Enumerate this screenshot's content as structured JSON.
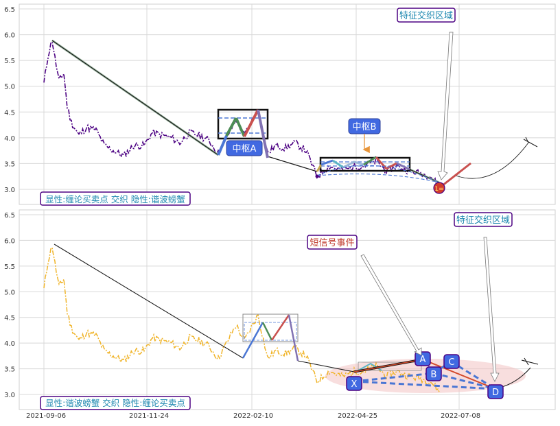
{
  "chart_data": [
    {
      "type": "line",
      "panel": "top",
      "ylim": [
        2.8,
        6.6
      ],
      "yticks": [
        3.0,
        3.5,
        4.0,
        4.5,
        5.0,
        5.5,
        6.0,
        6.5
      ],
      "grid": true,
      "info_box": "显性:缠论买卖点 交织 隐性:谐波螃蟹",
      "annotations": {
        "zhongshu_a": "中枢A",
        "zhongshu_b": "中枢B",
        "feature_zone": "特征交织区域",
        "signal_marker": "1="
      },
      "colors": {
        "price": "#4b0082",
        "box_label_bg": "#4169e1",
        "feature_border": "#4b0082"
      }
    },
    {
      "type": "line",
      "panel": "bottom",
      "ylim": [
        2.8,
        6.6
      ],
      "yticks": [
        3.0,
        3.5,
        4.0,
        4.5,
        5.0,
        5.5,
        6.0,
        6.5
      ],
      "xticks": [
        "2021-09-06",
        "2021-11-24",
        "2022-02-10",
        "2022-04-25",
        "2022-07-08"
      ],
      "grid": true,
      "info_box": "显性:谐波螃蟹 交织 隐性:缠论买卖点",
      "annotations": {
        "short_signal": "短信号事件",
        "feature_zone": "特征交织区域",
        "points": [
          "X",
          "A",
          "B",
          "C",
          "D"
        ]
      },
      "colors": {
        "price": "#f0b429",
        "point_bg": "#4169e1",
        "signal_text": "#c0392b"
      }
    }
  ]
}
